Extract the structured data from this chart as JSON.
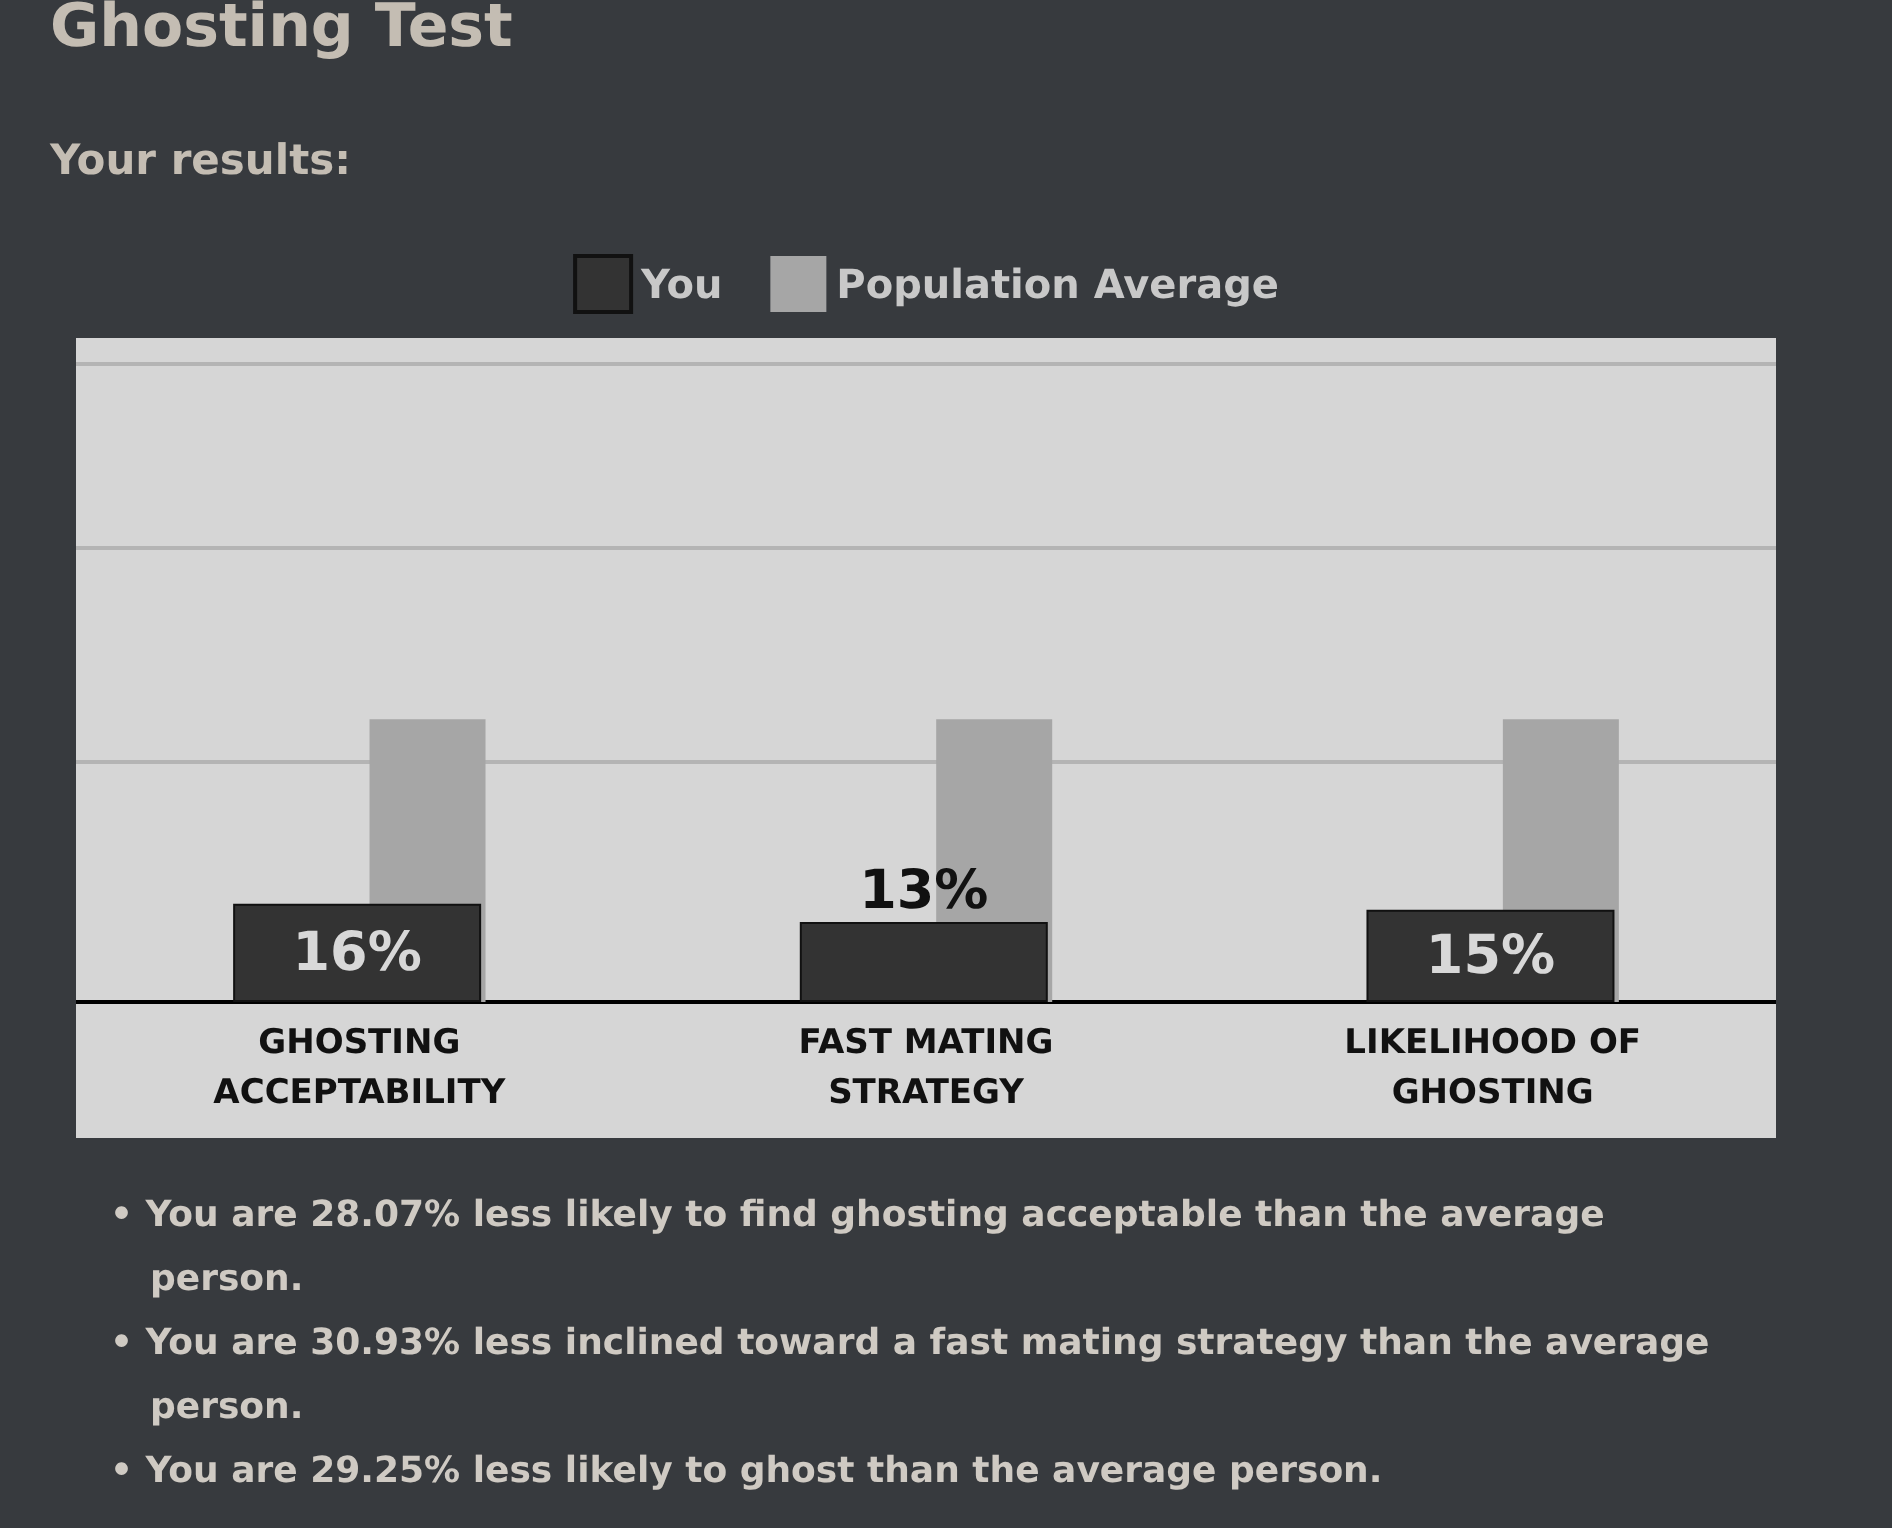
{
  "chart_data": {
    "type": "bar",
    "title": "Ghosting Test",
    "subtitle": "Your results:",
    "categories": [
      "GHOSTING ACCEPTABILITY",
      "FAST MATING STRATEGY",
      "LIKELIHOOD OF GHOSTING"
    ],
    "series": [
      {
        "name": "You",
        "color": "#333333",
        "values": [
          16,
          13,
          15
        ],
        "value_labels": [
          "16%",
          "13%",
          "15%"
        ]
      },
      {
        "name": "Population Average",
        "color": "#a6a6a6",
        "values": [
          46,
          46,
          46
        ]
      }
    ],
    "ylim": [
      0,
      108
    ],
    "yticks": [
      {
        "value": 39,
        "label": null
      },
      {
        "value": 74,
        "label": null
      },
      {
        "value": 104,
        "label": null
      }
    ],
    "grid": "y",
    "legend": "top",
    "tick_labels": "x",
    "annotations": [
      "• You are 28.07% less likely to find ghosting acceptable than the average person.",
      "• You are 30.93% less inclined toward a fast mating strategy than the average person.",
      "• You are 29.25% less likely to ghost than the average person."
    ]
  }
}
